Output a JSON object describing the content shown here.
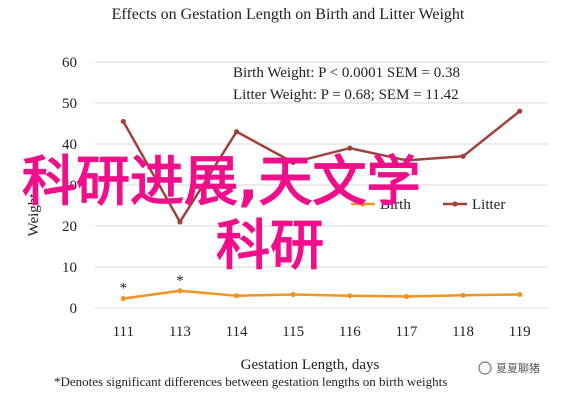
{
  "chart_data": {
    "type": "line",
    "title": "Effects on Gestation Length on Birth and Litter Weight",
    "xlabel": "Gestation Length, days",
    "ylabel": "Weight",
    "categories": [
      "111",
      "113",
      "114",
      "115",
      "116",
      "117",
      "118",
      "119"
    ],
    "ylim": [
      0,
      60
    ],
    "y_ticks": [
      0,
      10,
      20,
      30,
      40,
      50,
      60
    ],
    "grid": true,
    "legend_position": "center-right",
    "series": [
      {
        "name": "Birth",
        "color": "#f39422",
        "values": [
          2.3,
          4.2,
          3.0,
          3.3,
          3.0,
          2.8,
          3.1,
          3.3
        ]
      },
      {
        "name": "Litter",
        "color": "#a0413c",
        "values": [
          45.5,
          21.0,
          43.0,
          35.5,
          39.0,
          36.0,
          37.0,
          48.0
        ]
      }
    ],
    "significance_markers": [
      {
        "category": "111",
        "label": "*"
      },
      {
        "category": "113",
        "label": "*"
      }
    ],
    "stats": [
      "Birth Weight: P < 0.0001 SEM = 0.38",
      "Litter Weight: P = 0.68; SEM = 11.42"
    ],
    "footnote": "*Denotes significant differences between gestation lengths on birth weights"
  },
  "overlay": {
    "watermark_line1": "科研进展,天文学",
    "watermark_line2": "科研",
    "brand": "夏夏聊猪"
  }
}
